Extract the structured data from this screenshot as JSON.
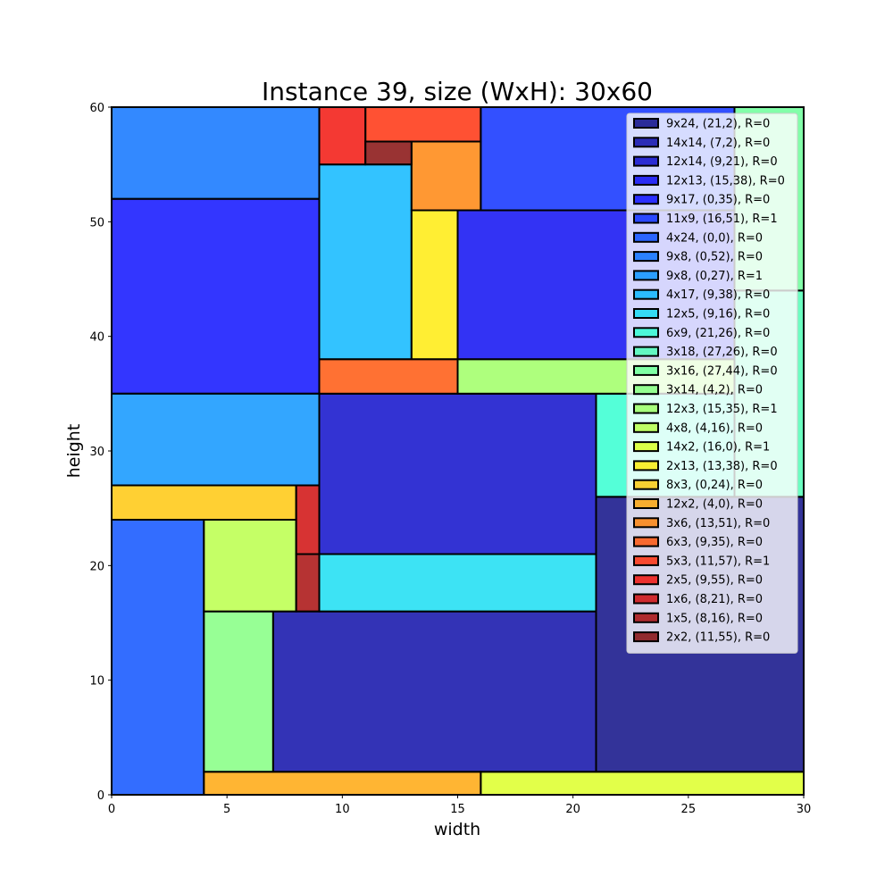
{
  "chart_data": {
    "type": "rectangle-packing",
    "title": "Instance 39, size (WxH): 30x60",
    "xlabel": "width",
    "ylabel": "height",
    "xlim": [
      0,
      30
    ],
    "ylim": [
      0,
      60
    ],
    "xticks": [
      "0",
      "5",
      "10",
      "15",
      "20",
      "25",
      "30"
    ],
    "yticks": [
      "0",
      "10",
      "20",
      "30",
      "40",
      "50",
      "60"
    ],
    "xtick_values": [
      0,
      5,
      10,
      15,
      20,
      25,
      30
    ],
    "ytick_values": [
      0,
      10,
      20,
      30,
      40,
      50,
      60
    ],
    "grid": false,
    "legend_position": "upper right",
    "rectangles": [
      {
        "label": "9x24, (21,2), R=0",
        "x": 21,
        "y": 2,
        "w": 9,
        "h": 24,
        "color": "#000080"
      },
      {
        "label": "14x14, (7,2), R=0",
        "x": 7,
        "y": 2,
        "w": 14,
        "h": 14,
        "color": "#0000a4"
      },
      {
        "label": "12x14, (9,21), R=0",
        "x": 9,
        "y": 21,
        "w": 12,
        "h": 14,
        "color": "#0000c8"
      },
      {
        "label": "12x13, (15,38), R=0",
        "x": 15,
        "y": 38,
        "w": 12,
        "h": 13,
        "color": "#0000f1"
      },
      {
        "label": "9x17, (0,35), R=0",
        "x": 0,
        "y": 35,
        "w": 9,
        "h": 17,
        "color": "#0004ff"
      },
      {
        "label": "11x9, (16,51), R=1",
        "x": 16,
        "y": 51,
        "w": 11,
        "h": 9,
        "color": "#0024ff"
      },
      {
        "label": "4x24, (0,0), R=0",
        "x": 0,
        "y": 0,
        "w": 4,
        "h": 24,
        "color": "#0048ff"
      },
      {
        "label": "9x8, (0,52), R=0",
        "x": 0,
        "y": 52,
        "w": 9,
        "h": 8,
        "color": "#006cff"
      },
      {
        "label": "9x8, (0,27), R=1",
        "x": 0,
        "y": 27,
        "w": 9,
        "h": 8,
        "color": "#0090ff"
      },
      {
        "label": "4x17, (9,38), R=0",
        "x": 9,
        "y": 38,
        "w": 4,
        "h": 17,
        "color": "#00b4ff"
      },
      {
        "label": "12x5, (9,16), R=0",
        "x": 9,
        "y": 16,
        "w": 12,
        "h": 5,
        "color": "#0ddcf1"
      },
      {
        "label": "6x9, (21,26), R=0",
        "x": 21,
        "y": 26,
        "w": 6,
        "h": 9,
        "color": "#29ffce"
      },
      {
        "label": "3x18, (27,26), R=0",
        "x": 27,
        "y": 26,
        "w": 3,
        "h": 18,
        "color": "#46ffb1"
      },
      {
        "label": "3x16, (27,44), R=0",
        "x": 27,
        "y": 44,
        "w": 3,
        "h": 16,
        "color": "#63ff94"
      },
      {
        "label": "3x14, (4,2), R=0",
        "x": 4,
        "y": 2,
        "w": 3,
        "h": 14,
        "color": "#7dff7a"
      },
      {
        "label": "12x3, (15,35), R=1",
        "x": 15,
        "y": 35,
        "w": 12,
        "h": 3,
        "color": "#9aff5d"
      },
      {
        "label": "4x8, (4,16), R=0",
        "x": 4,
        "y": 16,
        "w": 4,
        "h": 8,
        "color": "#b7ff40"
      },
      {
        "label": "14x2, (16,0), R=1",
        "x": 16,
        "y": 0,
        "w": 14,
        "h": 2,
        "color": "#dbff1c"
      },
      {
        "label": "2x13, (13,38), R=0",
        "x": 13,
        "y": 38,
        "w": 2,
        "h": 13,
        "color": "#ffea00"
      },
      {
        "label": "8x3, (0,24), R=0",
        "x": 0,
        "y": 24,
        "w": 8,
        "h": 3,
        "color": "#ffc400"
      },
      {
        "label": "12x2, (4,0), R=0",
        "x": 4,
        "y": 0,
        "w": 12,
        "h": 2,
        "color": "#ffa200"
      },
      {
        "label": "3x6, (13,51), R=0",
        "x": 13,
        "y": 51,
        "w": 3,
        "h": 6,
        "color": "#ff7e00"
      },
      {
        "label": "6x3, (9,35), R=0",
        "x": 9,
        "y": 35,
        "w": 6,
        "h": 3,
        "color": "#ff4d00"
      },
      {
        "label": "5x3, (11,57), R=1",
        "x": 11,
        "y": 57,
        "w": 5,
        "h": 3,
        "color": "#ff2600"
      },
      {
        "label": "2x5, (9,55), R=0",
        "x": 9,
        "y": 55,
        "w": 2,
        "h": 5,
        "color": "#f10800"
      },
      {
        "label": "1x6, (8,21), R=0",
        "x": 8,
        "y": 21,
        "w": 1,
        "h": 6,
        "color": "#cd0000"
      },
      {
        "label": "1x5, (8,16), R=0",
        "x": 8,
        "y": 16,
        "w": 1,
        "h": 5,
        "color": "#a40000"
      },
      {
        "label": "2x2, (11,55), R=0",
        "x": 11,
        "y": 55,
        "w": 2,
        "h": 2,
        "color": "#800000"
      }
    ]
  }
}
